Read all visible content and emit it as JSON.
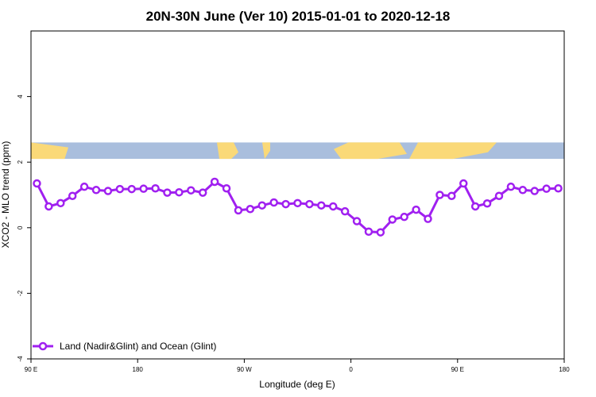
{
  "chart_data": {
    "type": "line",
    "title": "20N-30N June (Ver 10)   2015-01-01 to 2020-12-18",
    "xlabel": "Longitude (deg E)",
    "ylabel": "XCO2 - MLO trend (ppm)",
    "x_ticks": [
      "90 E",
      "180",
      "90 W",
      "0",
      "90 E",
      "180"
    ],
    "x_tick_values": [
      90,
      180,
      270,
      360,
      450,
      540
    ],
    "y_ticks": [
      "-4",
      "-2",
      "0",
      "2",
      "4"
    ],
    "y_tick_values": [
      -4,
      -2,
      0,
      2,
      4
    ],
    "xlim": [
      90,
      540
    ],
    "ylim": [
      -4,
      6
    ],
    "legend_position": "bottom-left",
    "map_strip": {
      "ymin": 2.1,
      "ymax": 2.6,
      "land_color": "#FAD978",
      "ocean_color": "#A9BEDD"
    },
    "series": [
      {
        "name": "Land (Nadir&Glint) and Ocean (Glint)",
        "color": "#A020F0",
        "x": [
          95,
          105,
          115,
          125,
          135,
          145,
          155,
          165,
          175,
          185,
          195,
          205,
          215,
          225,
          235,
          245,
          255,
          265,
          275,
          285,
          295,
          305,
          315,
          325,
          335,
          345,
          355,
          365,
          375,
          385,
          395,
          405,
          415,
          425,
          435,
          445,
          455,
          465,
          475,
          485,
          495,
          505,
          515,
          525,
          535
        ],
        "y": [
          1.35,
          0.65,
          0.75,
          0.97,
          1.25,
          1.15,
          1.12,
          1.18,
          1.18,
          1.19,
          1.2,
          1.07,
          1.08,
          1.14,
          1.07,
          1.4,
          1.2,
          0.53,
          0.57,
          0.68,
          0.77,
          0.72,
          0.75,
          0.72,
          0.68,
          0.65,
          0.5,
          0.2,
          -0.12,
          -0.14,
          0.25,
          0.33,
          0.55,
          0.27,
          1.0,
          0.97,
          1.35,
          0.65,
          0.74,
          0.97,
          1.25,
          1.15,
          1.12,
          1.19,
          1.2
        ]
      }
    ]
  }
}
